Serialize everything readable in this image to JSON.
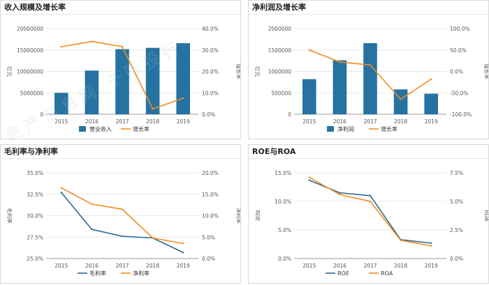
{
  "watermark": "资产信息网 千际投行",
  "colors": {
    "bar": "#2673a1",
    "line": "#f08c22",
    "line2": "#2d6d8f",
    "grid": "#e8e8e8",
    "axis": "#555555"
  },
  "chart_data": [
    {
      "id": "revenue",
      "type": "bar+line",
      "title": "收入规模及增长率",
      "categories": [
        "2015",
        "2016",
        "2017",
        "2018",
        "2019"
      ],
      "series": [
        {
          "name": "营业收入",
          "type": "bar",
          "axis": "left",
          "values": [
            5000000,
            10200000,
            15200000,
            15500000,
            16600000
          ]
        },
        {
          "name": "增长率",
          "type": "line",
          "axis": "right",
          "values": [
            31.5,
            34.0,
            31.5,
            2.5,
            7.5
          ]
        }
      ],
      "left_axis": {
        "label": "亿元",
        "min": 0,
        "max": 20000000,
        "ticks": [
          "0",
          "5000000",
          "10000000",
          "15000000",
          "20000000"
        ]
      },
      "right_axis": {
        "label": "增长率",
        "min": 0,
        "max": 40,
        "ticks": [
          "0.0%",
          "10.0%",
          "20.0%",
          "30.0%",
          "40.0%"
        ]
      }
    },
    {
      "id": "profit",
      "type": "bar+line",
      "title": "净利润及增长率",
      "categories": [
        "2015",
        "2016",
        "2017",
        "2018",
        "2019"
      ],
      "series": [
        {
          "name": "净利润",
          "type": "bar",
          "axis": "left",
          "values": [
            820000,
            1260000,
            1660000,
            580000,
            480000
          ]
        },
        {
          "name": "增长率",
          "type": "line",
          "axis": "right",
          "values": [
            50,
            22,
            15,
            -65,
            -18
          ]
        }
      ],
      "left_axis": {
        "label": "亿元",
        "min": 0,
        "max": 2000000,
        "ticks": [
          "0",
          "500000",
          "1000000",
          "1500000",
          "2000000"
        ]
      },
      "right_axis": {
        "label": "增长率",
        "min": -100,
        "max": 100,
        "ticks": [
          "-100.0%",
          "-50.0%",
          "0.0%",
          "50.0%",
          "100.0%"
        ]
      }
    },
    {
      "id": "margin",
      "type": "line",
      "title": "毛利率与净利率",
      "categories": [
        "2015",
        "2016",
        "2017",
        "2018",
        "2019"
      ],
      "series": [
        {
          "name": "毛利率",
          "axis": "left",
          "color": "line2",
          "values": [
            32.7,
            28.4,
            27.6,
            27.4,
            25.7
          ]
        },
        {
          "name": "净利率",
          "axis": "right",
          "color": "line",
          "values": [
            16.5,
            12.7,
            11.5,
            4.8,
            3.5
          ]
        }
      ],
      "left_axis": {
        "label": "毛利率",
        "min": 25,
        "max": 35,
        "ticks": [
          "25.0%",
          "27.5%",
          "30.0%",
          "32.5%",
          "35.0%"
        ]
      },
      "right_axis": {
        "label": "净利率",
        "min": 0,
        "max": 20,
        "ticks": [
          "0.0%",
          "5.0%",
          "10.0%",
          "15.0%",
          "20.0%"
        ]
      }
    },
    {
      "id": "roe",
      "type": "line",
      "title": "ROE与ROA",
      "categories": [
        "2015",
        "2016",
        "2017",
        "2018",
        "2019"
      ],
      "series": [
        {
          "name": "ROE",
          "axis": "left",
          "color": "line2",
          "values": [
            13.7,
            11.5,
            11.0,
            3.3,
            2.7
          ]
        },
        {
          "name": "ROA",
          "axis": "right",
          "color": "line",
          "values": [
            7.1,
            5.6,
            5.0,
            1.6,
            1.1
          ]
        }
      ],
      "left_axis": {
        "label": "ROE",
        "min": 0,
        "max": 15,
        "ticks": [
          "0.0%",
          "5.0%",
          "10.0%",
          "15.0%"
        ]
      },
      "right_axis": {
        "label": "ROA",
        "min": 0,
        "max": 7.5,
        "ticks": [
          "0.0%",
          "2.5%",
          "5.0%",
          "7.5%"
        ]
      }
    }
  ]
}
